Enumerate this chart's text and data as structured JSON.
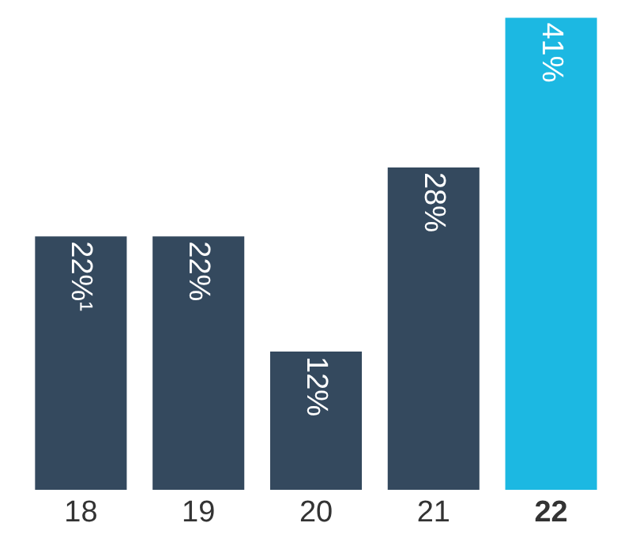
{
  "chart_data": {
    "type": "bar",
    "categories": [
      "18",
      "19",
      "20",
      "21",
      "22"
    ],
    "values": [
      22,
      22,
      12,
      28,
      41
    ],
    "colors": [
      "#34495e",
      "#34495e",
      "#34495e",
      "#34495e",
      "#1cb8e2"
    ],
    "value_labels": [
      "22%¹",
      "22%",
      "12%",
      "28%",
      "41%"
    ],
    "legend": false
  }
}
